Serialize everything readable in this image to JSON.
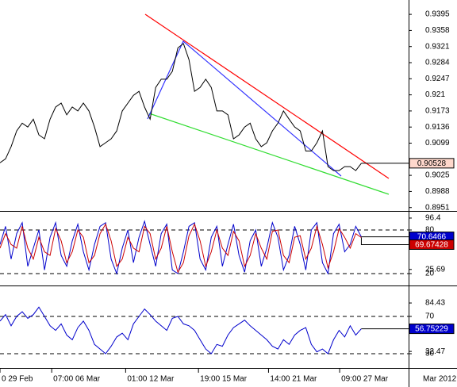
{
  "chart_data": [
    {
      "type": "line",
      "xlim": [
        0,
        73.5
      ],
      "ylim": [
        0.8945,
        0.9428
      ],
      "yticks": [
        0.9395,
        0.9358,
        0.9321,
        0.9284,
        0.9247,
        0.921,
        0.9173,
        0.9136,
        0.9099,
        0.9025,
        0.8988,
        0.8951
      ],
      "series": [
        {
          "color": "#000000",
          "last_box": "#ffd8cc",
          "values": [
            0.9054,
            0.9063,
            0.9091,
            0.9127,
            0.9145,
            0.9136,
            0.9154,
            0.9118,
            0.9109,
            0.9154,
            0.9182,
            0.9191,
            0.9164,
            0.9182,
            0.9173,
            0.9191,
            0.9173,
            0.9136,
            0.9091,
            0.91,
            0.9109,
            0.9127,
            0.9173,
            0.9191,
            0.9209,
            0.9218,
            0.9182,
            0.9154,
            0.9227,
            0.9246,
            0.9246,
            0.9264,
            0.9318,
            0.9328,
            0.9291,
            0.9218,
            0.9227,
            0.9246,
            0.9227,
            0.9173,
            0.9173,
            0.9164,
            0.9109,
            0.9118,
            0.9136,
            0.9145,
            0.9109,
            0.9091,
            0.91,
            0.9127,
            0.9145,
            0.9173,
            0.9154,
            0.9136,
            0.9127,
            0.9081,
            0.9081,
            0.91,
            0.9127,
            0.9045,
            0.9036,
            0.9036,
            0.9045,
            0.9045,
            0.9036,
            0.90528
          ]
        }
      ]
    },
    {
      "type": "line",
      "xlim": [
        0,
        73.5
      ],
      "ylim": [
        5.8,
        104
      ],
      "yticks": [
        96.4,
        80,
        25.69,
        20
      ],
      "levels": [
        80,
        20
      ],
      "series": [
        {
          "color": "#0000cc",
          "last_box": "#0000cc",
          "values": [
            60,
            85,
            40,
            75,
            90,
            30,
            55,
            80,
            25,
            70,
            90,
            45,
            30,
            65,
            88,
            50,
            25,
            60,
            85,
            90,
            40,
            20,
            55,
            80,
            35,
            70,
            92,
            60,
            30,
            75,
            88,
            25,
            20,
            50,
            85,
            90,
            40,
            25,
            70,
            85,
            30,
            60,
            88,
            45,
            22,
            65,
            80,
            30,
            55,
            90,
            70,
            25,
            45,
            85,
            60,
            25,
            80,
            90,
            35,
            20,
            75,
            88,
            50,
            60,
            85,
            70.6466
          ]
        },
        {
          "color": "#cc0000",
          "last_box": "#cc0000",
          "values": [
            55,
            75,
            60,
            55,
            85,
            55,
            40,
            70,
            50,
            45,
            82,
            65,
            35,
            50,
            80,
            70,
            35,
            45,
            75,
            88,
            65,
            30,
            40,
            70,
            55,
            50,
            85,
            75,
            40,
            55,
            85,
            50,
            22,
            35,
            72,
            88,
            65,
            30,
            50,
            80,
            55,
            45,
            78,
            65,
            30,
            45,
            75,
            55,
            40,
            78,
            80,
            45,
            35,
            70,
            72,
            40,
            55,
            85,
            60,
            28,
            50,
            82,
            70,
            55,
            75,
            69.67428
          ]
        }
      ]
    },
    {
      "type": "line",
      "xlim": [
        0,
        73.5
      ],
      "ylim": [
        16.4,
        101.5
      ],
      "yticks": [
        84.43,
        70,
        32.47,
        30
      ],
      "levels": [
        70,
        30
      ],
      "series": [
        {
          "color": "#0000cc",
          "last_box": "#0000cc",
          "values": [
            65,
            72,
            60,
            70,
            75,
            68,
            72,
            80,
            70,
            60,
            55,
            62,
            50,
            45,
            58,
            65,
            55,
            40,
            35,
            30,
            38,
            48,
            52,
            45,
            62,
            70,
            78,
            72,
            65,
            60,
            55,
            68,
            70,
            62,
            60,
            55,
            45,
            35,
            30,
            40,
            38,
            50,
            58,
            62,
            66,
            60,
            55,
            50,
            45,
            38,
            35,
            45,
            40,
            50,
            55,
            58,
            40,
            32,
            35,
            30,
            45,
            55,
            48,
            60,
            50,
            56.75229
          ]
        }
      ],
      "xticks": [
        {
          "value": 0,
          "label": "0 29 Feb"
        },
        {
          "value": 9.3,
          "label": "07:00 06 Mar"
        },
        {
          "value": 22.6,
          "label": "01:00 12 Mar"
        },
        {
          "value": 35.7,
          "label": "19:00 15 Mar"
        },
        {
          "value": 48.3,
          "label": "14:00 21 Mar"
        },
        {
          "value": 61.1,
          "label": "09:00 27 Mar"
        }
      ],
      "period_label": "Mar 2012"
    }
  ]
}
